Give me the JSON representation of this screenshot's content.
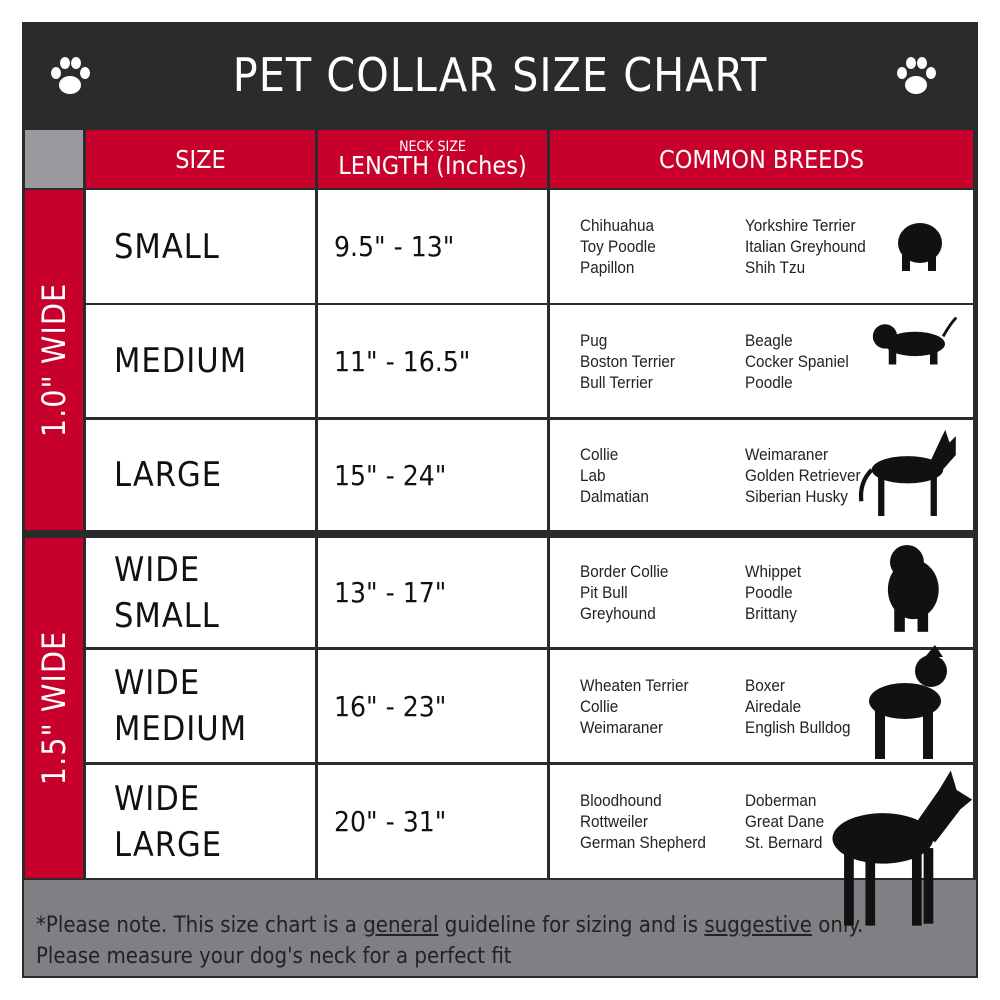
{
  "title": "PET COLLAR SIZE CHART",
  "headers": {
    "size": "SIZE",
    "length_small": "NECK SIZE",
    "length": "LENGTH (Inches)",
    "breeds": "COMMON BREEDS"
  },
  "groups": [
    {
      "label": "1.0\" WIDE"
    },
    {
      "label": "1.5\" WIDE"
    }
  ],
  "rows": [
    {
      "size": [
        "SMALL"
      ],
      "length": "9.5\" - 13\"",
      "breeds_a": [
        "Chihuahua",
        "Toy Poodle",
        "Papillon"
      ],
      "breeds_b": [
        "Yorkshire Terrier",
        "Italian Greyhound",
        "Shih Tzu"
      ]
    },
    {
      "size": [
        "MEDIUM"
      ],
      "length": "11\" - 16.5\"",
      "breeds_a": [
        "Pug",
        "Boston Terrier",
        "Bull Terrier"
      ],
      "breeds_b": [
        "Beagle",
        "Cocker Spaniel",
        "Poodle"
      ]
    },
    {
      "size": [
        "LARGE"
      ],
      "length": "15\" - 24\"",
      "breeds_a": [
        "Collie",
        "Lab",
        "Dalmatian"
      ],
      "breeds_b": [
        "Weimaraner",
        "Golden Retriever",
        "Siberian Husky"
      ]
    },
    {
      "size": [
        "WIDE",
        "SMALL"
      ],
      "length": "13\" - 17\"",
      "breeds_a": [
        "Border Collie",
        "Pit Bull",
        "Greyhound"
      ],
      "breeds_b": [
        "Whippet",
        "Poodle",
        "Brittany"
      ]
    },
    {
      "size": [
        "WIDE",
        "MEDIUM"
      ],
      "length": "16\" - 23\"",
      "breeds_a": [
        "Wheaten Terrier",
        "Collie",
        "Weimaraner"
      ],
      "breeds_b": [
        "Boxer",
        "Airedale",
        "English Bulldog"
      ]
    },
    {
      "size": [
        "WIDE",
        "LARGE"
      ],
      "length": "20\" - 31\"",
      "breeds_a": [
        "Bloodhound",
        "Rottweiler",
        "German Shepherd"
      ],
      "breeds_b": [
        "Doberman",
        "Great Dane",
        "St. Bernard"
      ]
    }
  ],
  "footer": {
    "p1": "*Please note. This size chart is a ",
    "u1": "general",
    "p2": " guideline for sizing and is ",
    "u2": "suggestive",
    "p3": " only.",
    "line2": "Please measure your dog's neck for a perfect fit"
  },
  "colors": {
    "red": "#c8002c",
    "dark": "#2b2b2b",
    "gray": "#808084"
  }
}
